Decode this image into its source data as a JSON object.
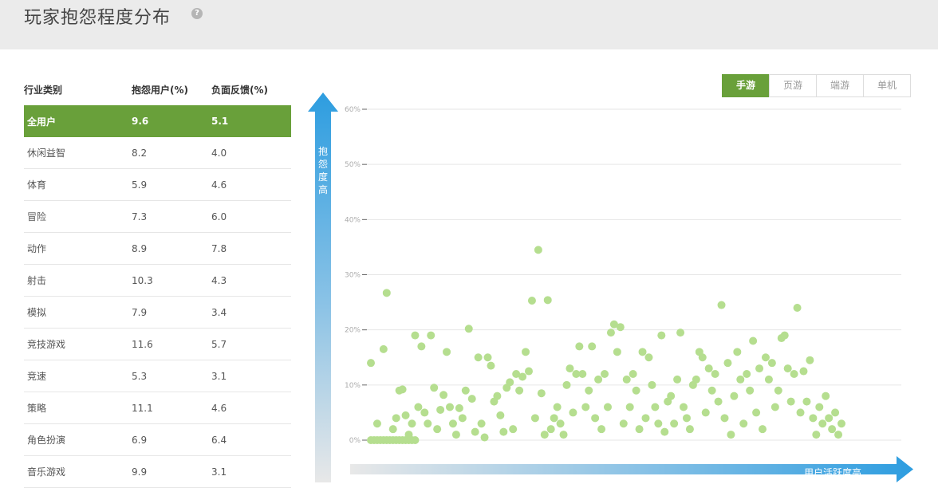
{
  "header": {
    "title": "玩家抱怨程度分布",
    "help_icon": "?"
  },
  "table": {
    "headers": [
      "行业类别",
      "抱怨用户(%)",
      "负面反馈(%)"
    ],
    "rows": [
      {
        "category": "全用户",
        "complaint": "9.6",
        "negative": "5.1",
        "active": true
      },
      {
        "category": "休闲益智",
        "complaint": "8.2",
        "negative": "4.0"
      },
      {
        "category": "体育",
        "complaint": "5.9",
        "negative": "4.6"
      },
      {
        "category": "冒险",
        "complaint": "7.3",
        "negative": "6.0"
      },
      {
        "category": "动作",
        "complaint": "8.9",
        "negative": "7.8"
      },
      {
        "category": "射击",
        "complaint": "10.3",
        "negative": "4.3"
      },
      {
        "category": "模拟",
        "complaint": "7.9",
        "negative": "3.4"
      },
      {
        "category": "竞技游戏",
        "complaint": "11.6",
        "negative": "5.7"
      },
      {
        "category": "竞速",
        "complaint": "5.3",
        "negative": "3.1"
      },
      {
        "category": "策略",
        "complaint": "11.1",
        "negative": "4.6"
      },
      {
        "category": "角色扮演",
        "complaint": "6.9",
        "negative": "6.4"
      },
      {
        "category": "音乐游戏",
        "complaint": "9.9",
        "negative": "3.1"
      }
    ]
  },
  "tabs": [
    {
      "label": "手游",
      "active": true
    },
    {
      "label": "页游",
      "active": false
    },
    {
      "label": "端游",
      "active": false
    },
    {
      "label": "单机",
      "active": false
    }
  ],
  "axes": {
    "y_label": "抱怨度高",
    "x_label": "用户活跃度高"
  },
  "colors": {
    "accent": "#69a03a",
    "point": "#b5de8f",
    "axis_blue": "#2d9de0"
  },
  "chart_data": {
    "type": "scatter",
    "ylim": [
      0,
      60
    ],
    "y_ticks": [
      "0%",
      "10%",
      "20%",
      "30%",
      "40%",
      "50%",
      "60%"
    ],
    "grid": true,
    "points": [
      [
        1,
        0
      ],
      [
        2,
        0
      ],
      [
        3,
        0
      ],
      [
        4,
        0
      ],
      [
        5,
        0
      ],
      [
        6,
        0
      ],
      [
        7,
        0
      ],
      [
        8,
        0
      ],
      [
        9,
        0
      ],
      [
        10,
        0
      ],
      [
        11,
        0
      ],
      [
        12,
        0
      ],
      [
        13,
        0
      ],
      [
        14,
        0
      ],
      [
        15,
        0
      ],
      [
        1,
        14
      ],
      [
        3,
        3
      ],
      [
        5,
        16.5
      ],
      [
        6,
        26.7
      ],
      [
        8,
        2
      ],
      [
        9,
        4
      ],
      [
        10,
        9
      ],
      [
        11,
        9.2
      ],
      [
        12,
        4.5
      ],
      [
        13,
        1
      ],
      [
        14,
        3
      ],
      [
        15,
        19
      ],
      [
        16,
        6
      ],
      [
        17,
        17
      ],
      [
        18,
        5
      ],
      [
        19,
        3
      ],
      [
        20,
        19
      ],
      [
        21,
        9.5
      ],
      [
        22,
        2
      ],
      [
        23,
        5.5
      ],
      [
        24,
        8.2
      ],
      [
        25,
        16
      ],
      [
        26,
        6
      ],
      [
        27,
        3
      ],
      [
        28,
        1
      ],
      [
        29,
        5.8
      ],
      [
        30,
        4
      ],
      [
        31,
        9
      ],
      [
        32,
        20.2
      ],
      [
        33,
        7.5
      ],
      [
        34,
        1.5
      ],
      [
        35,
        15
      ],
      [
        36,
        3
      ],
      [
        37,
        0.5
      ],
      [
        38,
        15
      ],
      [
        39,
        13.5
      ],
      [
        40,
        7
      ],
      [
        41,
        8
      ],
      [
        42,
        4.5
      ],
      [
        43,
        1.5
      ],
      [
        44,
        9.5
      ],
      [
        45,
        10.5
      ],
      [
        46,
        2
      ],
      [
        47,
        12
      ],
      [
        48,
        9
      ],
      [
        49,
        11.5
      ],
      [
        50,
        16
      ],
      [
        51,
        12.5
      ],
      [
        52,
        25.3
      ],
      [
        53,
        4
      ],
      [
        54,
        34.5
      ],
      [
        55,
        8.5
      ],
      [
        56,
        1
      ],
      [
        57,
        25.4
      ],
      [
        58,
        2
      ],
      [
        59,
        4
      ],
      [
        60,
        6
      ],
      [
        61,
        3
      ],
      [
        62,
        1
      ],
      [
        63,
        10
      ],
      [
        64,
        13
      ],
      [
        65,
        5
      ],
      [
        66,
        12
      ],
      [
        67,
        17
      ],
      [
        68,
        12
      ],
      [
        69,
        6
      ],
      [
        70,
        9
      ],
      [
        71,
        17
      ],
      [
        72,
        4
      ],
      [
        73,
        11
      ],
      [
        74,
        2
      ],
      [
        75,
        12
      ],
      [
        76,
        6
      ],
      [
        77,
        19.5
      ],
      [
        78,
        21
      ],
      [
        79,
        16
      ],
      [
        80,
        20.5
      ],
      [
        81,
        3
      ],
      [
        82,
        11
      ],
      [
        83,
        6
      ],
      [
        84,
        12
      ],
      [
        85,
        9
      ],
      [
        86,
        2
      ],
      [
        87,
        16
      ],
      [
        88,
        4
      ],
      [
        89,
        15
      ],
      [
        90,
        10
      ],
      [
        91,
        6
      ],
      [
        92,
        3
      ],
      [
        93,
        19
      ],
      [
        94,
        1.5
      ],
      [
        95,
        7
      ],
      [
        96,
        8
      ],
      [
        97,
        3
      ],
      [
        98,
        11
      ],
      [
        99,
        19.5
      ],
      [
        100,
        6
      ],
      [
        101,
        4
      ],
      [
        102,
        2
      ],
      [
        103,
        10
      ],
      [
        104,
        11
      ],
      [
        105,
        16
      ],
      [
        106,
        15
      ],
      [
        107,
        5
      ],
      [
        108,
        13
      ],
      [
        109,
        9
      ],
      [
        110,
        12
      ],
      [
        111,
        7
      ],
      [
        112,
        24.5
      ],
      [
        113,
        4
      ],
      [
        114,
        14
      ],
      [
        115,
        1
      ],
      [
        116,
        8
      ],
      [
        117,
        16
      ],
      [
        118,
        11
      ],
      [
        119,
        3
      ],
      [
        120,
        12
      ],
      [
        121,
        9
      ],
      [
        122,
        18
      ],
      [
        123,
        5
      ],
      [
        124,
        13
      ],
      [
        125,
        2
      ],
      [
        126,
        15
      ],
      [
        127,
        11
      ],
      [
        128,
        14
      ],
      [
        129,
        6
      ],
      [
        130,
        9
      ],
      [
        131,
        18.5
      ],
      [
        132,
        19
      ],
      [
        133,
        13
      ],
      [
        134,
        7
      ],
      [
        135,
        12
      ],
      [
        136,
        24
      ],
      [
        137,
        5
      ],
      [
        138,
        12.5
      ],
      [
        139,
        7
      ],
      [
        140,
        14.5
      ],
      [
        141,
        4
      ],
      [
        142,
        1
      ],
      [
        143,
        6
      ],
      [
        144,
        3
      ],
      [
        145,
        8
      ],
      [
        146,
        4
      ],
      [
        147,
        2
      ],
      [
        148,
        5
      ],
      [
        149,
        1
      ],
      [
        150,
        3
      ]
    ]
  }
}
